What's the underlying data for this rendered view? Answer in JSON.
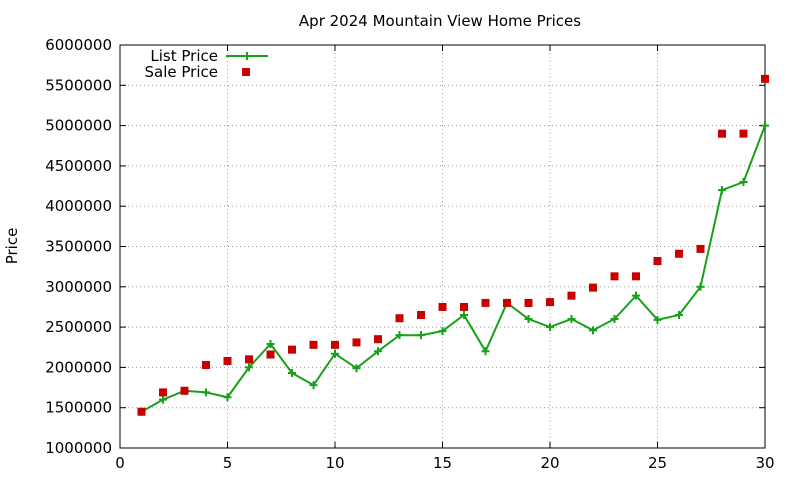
{
  "chart_data": {
    "type": "line",
    "title": "Apr 2024 Mountain View Home Prices",
    "xlabel": "",
    "ylabel": "Price",
    "xlim": [
      0,
      30
    ],
    "ylim": [
      1000000,
      6000000
    ],
    "x_ticks": [
      0,
      5,
      10,
      15,
      20,
      25,
      30
    ],
    "y_ticks": [
      1000000,
      1500000,
      2000000,
      2500000,
      3000000,
      3500000,
      4000000,
      4500000,
      5000000,
      5500000,
      6000000
    ],
    "grid": true,
    "legend_position": "top-left",
    "x": [
      1,
      2,
      3,
      4,
      5,
      6,
      7,
      8,
      9,
      10,
      11,
      12,
      13,
      14,
      15,
      16,
      17,
      18,
      19,
      20,
      21,
      22,
      23,
      24,
      25,
      26,
      27,
      28,
      29,
      30
    ],
    "series": [
      {
        "name": "List Price",
        "style": "line-with-plus-markers",
        "color": "#19a019",
        "values": [
          1450000,
          1600000,
          1710000,
          1690000,
          1630000,
          2000000,
          2290000,
          1930000,
          1780000,
          2170000,
          1990000,
          2200000,
          2400000,
          2400000,
          2450000,
          2650000,
          2200000,
          2800000,
          2600000,
          2500000,
          2600000,
          2460000,
          2600000,
          2890000,
          2590000,
          2650000,
          3000000,
          4200000,
          4300000,
          5000000
        ]
      },
      {
        "name": "Sale Price",
        "style": "square-markers",
        "color": "#c80000",
        "values": [
          1450000,
          1690000,
          1710000,
          2030000,
          2080000,
          2100000,
          2160000,
          2220000,
          2280000,
          2280000,
          2310000,
          2350000,
          2610000,
          2650000,
          2750000,
          2750000,
          2800000,
          2800000,
          2800000,
          2810000,
          2890000,
          2990000,
          3130000,
          3130000,
          3320000,
          3410000,
          3470000,
          4900000,
          4900000,
          5580000
        ]
      }
    ]
  }
}
